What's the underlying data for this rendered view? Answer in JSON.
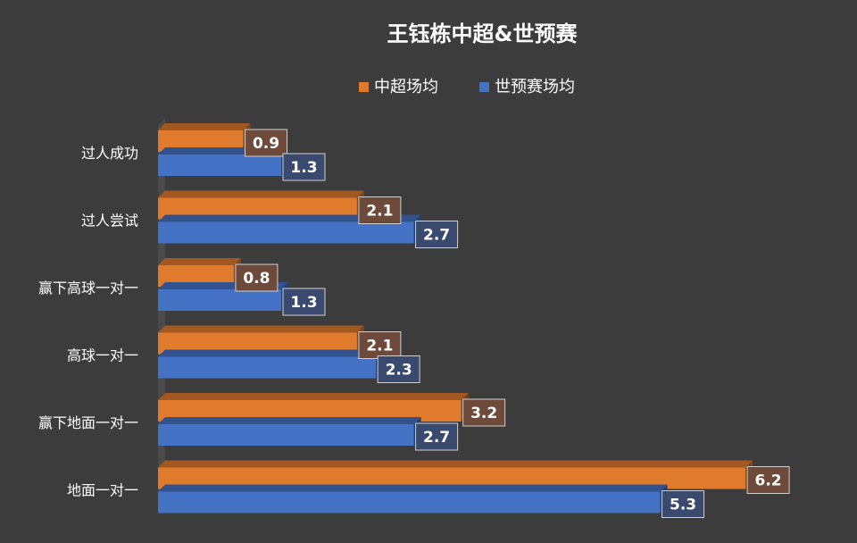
{
  "chart_data": {
    "type": "bar",
    "orientation": "horizontal",
    "title": "王钰栋中超&世预赛",
    "categories": [
      "过人成功",
      "过人尝试",
      "赢下高球一对一",
      "高球一对一",
      "赢下地面一对一",
      "地面一对一"
    ],
    "series": [
      {
        "name": "中超场均",
        "color": "#e07b2e",
        "values": [
          0.9,
          2.1,
          0.8,
          2.1,
          3.2,
          6.2
        ]
      },
      {
        "name": "世预赛场均",
        "color": "#4472c4",
        "values": [
          1.3,
          2.7,
          1.3,
          2.3,
          2.7,
          5.3
        ]
      }
    ],
    "xlim": [
      0,
      7
    ],
    "legend_position": "top",
    "grid": false,
    "data_labels": true
  }
}
